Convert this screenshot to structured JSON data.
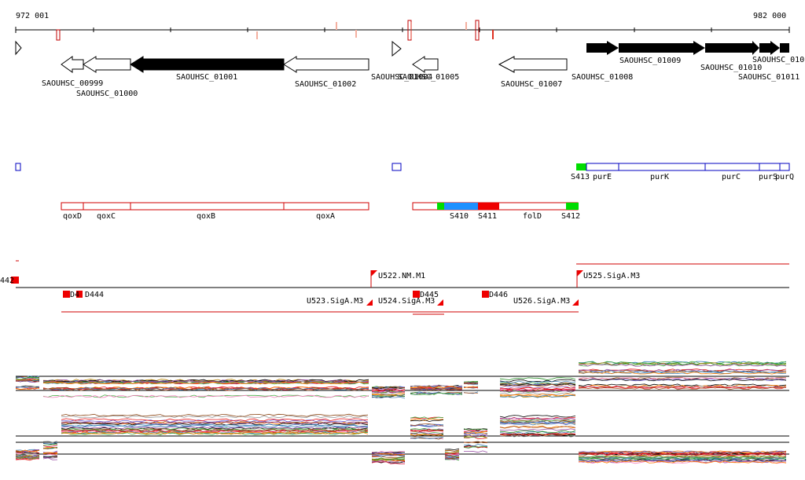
{
  "genome_axis": {
    "start_label": "972 001",
    "end_label": "982 000"
  },
  "genes": [
    {
      "locus": "SAOUHSC_00999",
      "strand": "-",
      "filled": false
    },
    {
      "locus": "SAOUHSC_01000",
      "strand": "-",
      "filled": false
    },
    {
      "locus": "SAOUHSC_01001",
      "strand": "-",
      "filled": true
    },
    {
      "locus": "SAOUHSC_01002",
      "strand": "-",
      "filled": false
    },
    {
      "locus": "SAOUHSC_01004",
      "strand": "+",
      "filled": false
    },
    {
      "locus": "SAOUHSC_01005",
      "strand": "-",
      "filled": false
    },
    {
      "locus": "SAOUHSC_01007",
      "strand": "-",
      "filled": false
    },
    {
      "locus": "SAOUHSC_01008",
      "strand": "+",
      "filled": true
    },
    {
      "locus": "SAOUHSC_01009",
      "strand": "+",
      "filled": true
    },
    {
      "locus": "SAOUHSC_01010",
      "strand": "+",
      "filled": true
    },
    {
      "locus": "SAOUHSC_01011",
      "strand": "+",
      "filled": true
    }
  ],
  "operons_forward": {
    "segments": [
      "S413",
      "purE",
      "purK",
      "purC",
      "purS",
      "purQ"
    ]
  },
  "operons_reverse": {
    "genes": [
      "qoxD",
      "qoxC",
      "qoxB",
      "qoxA",
      "folD"
    ],
    "segments": [
      "S410",
      "S411",
      "S412"
    ]
  },
  "transcription_units": [
    "U522.NM.M1",
    "U523.SigA.M3",
    "U524.SigA.M3",
    "U525.SigA.M3",
    "U526.SigA.M3"
  ],
  "regions": [
    "442",
    "D4",
    "D444",
    "D445",
    "D446"
  ],
  "colors": {
    "gene_fill": "#000000",
    "operon_reverse": "#d00000",
    "operon_forward": "#0000c0",
    "segment_green": "#00dd00",
    "segment_blue": "#1e90ff",
    "segment_red": "#ee0000"
  },
  "expression_tracks": {
    "top_panel": "forward-strand profiles",
    "bottom_panel": "reverse-strand profiles"
  }
}
